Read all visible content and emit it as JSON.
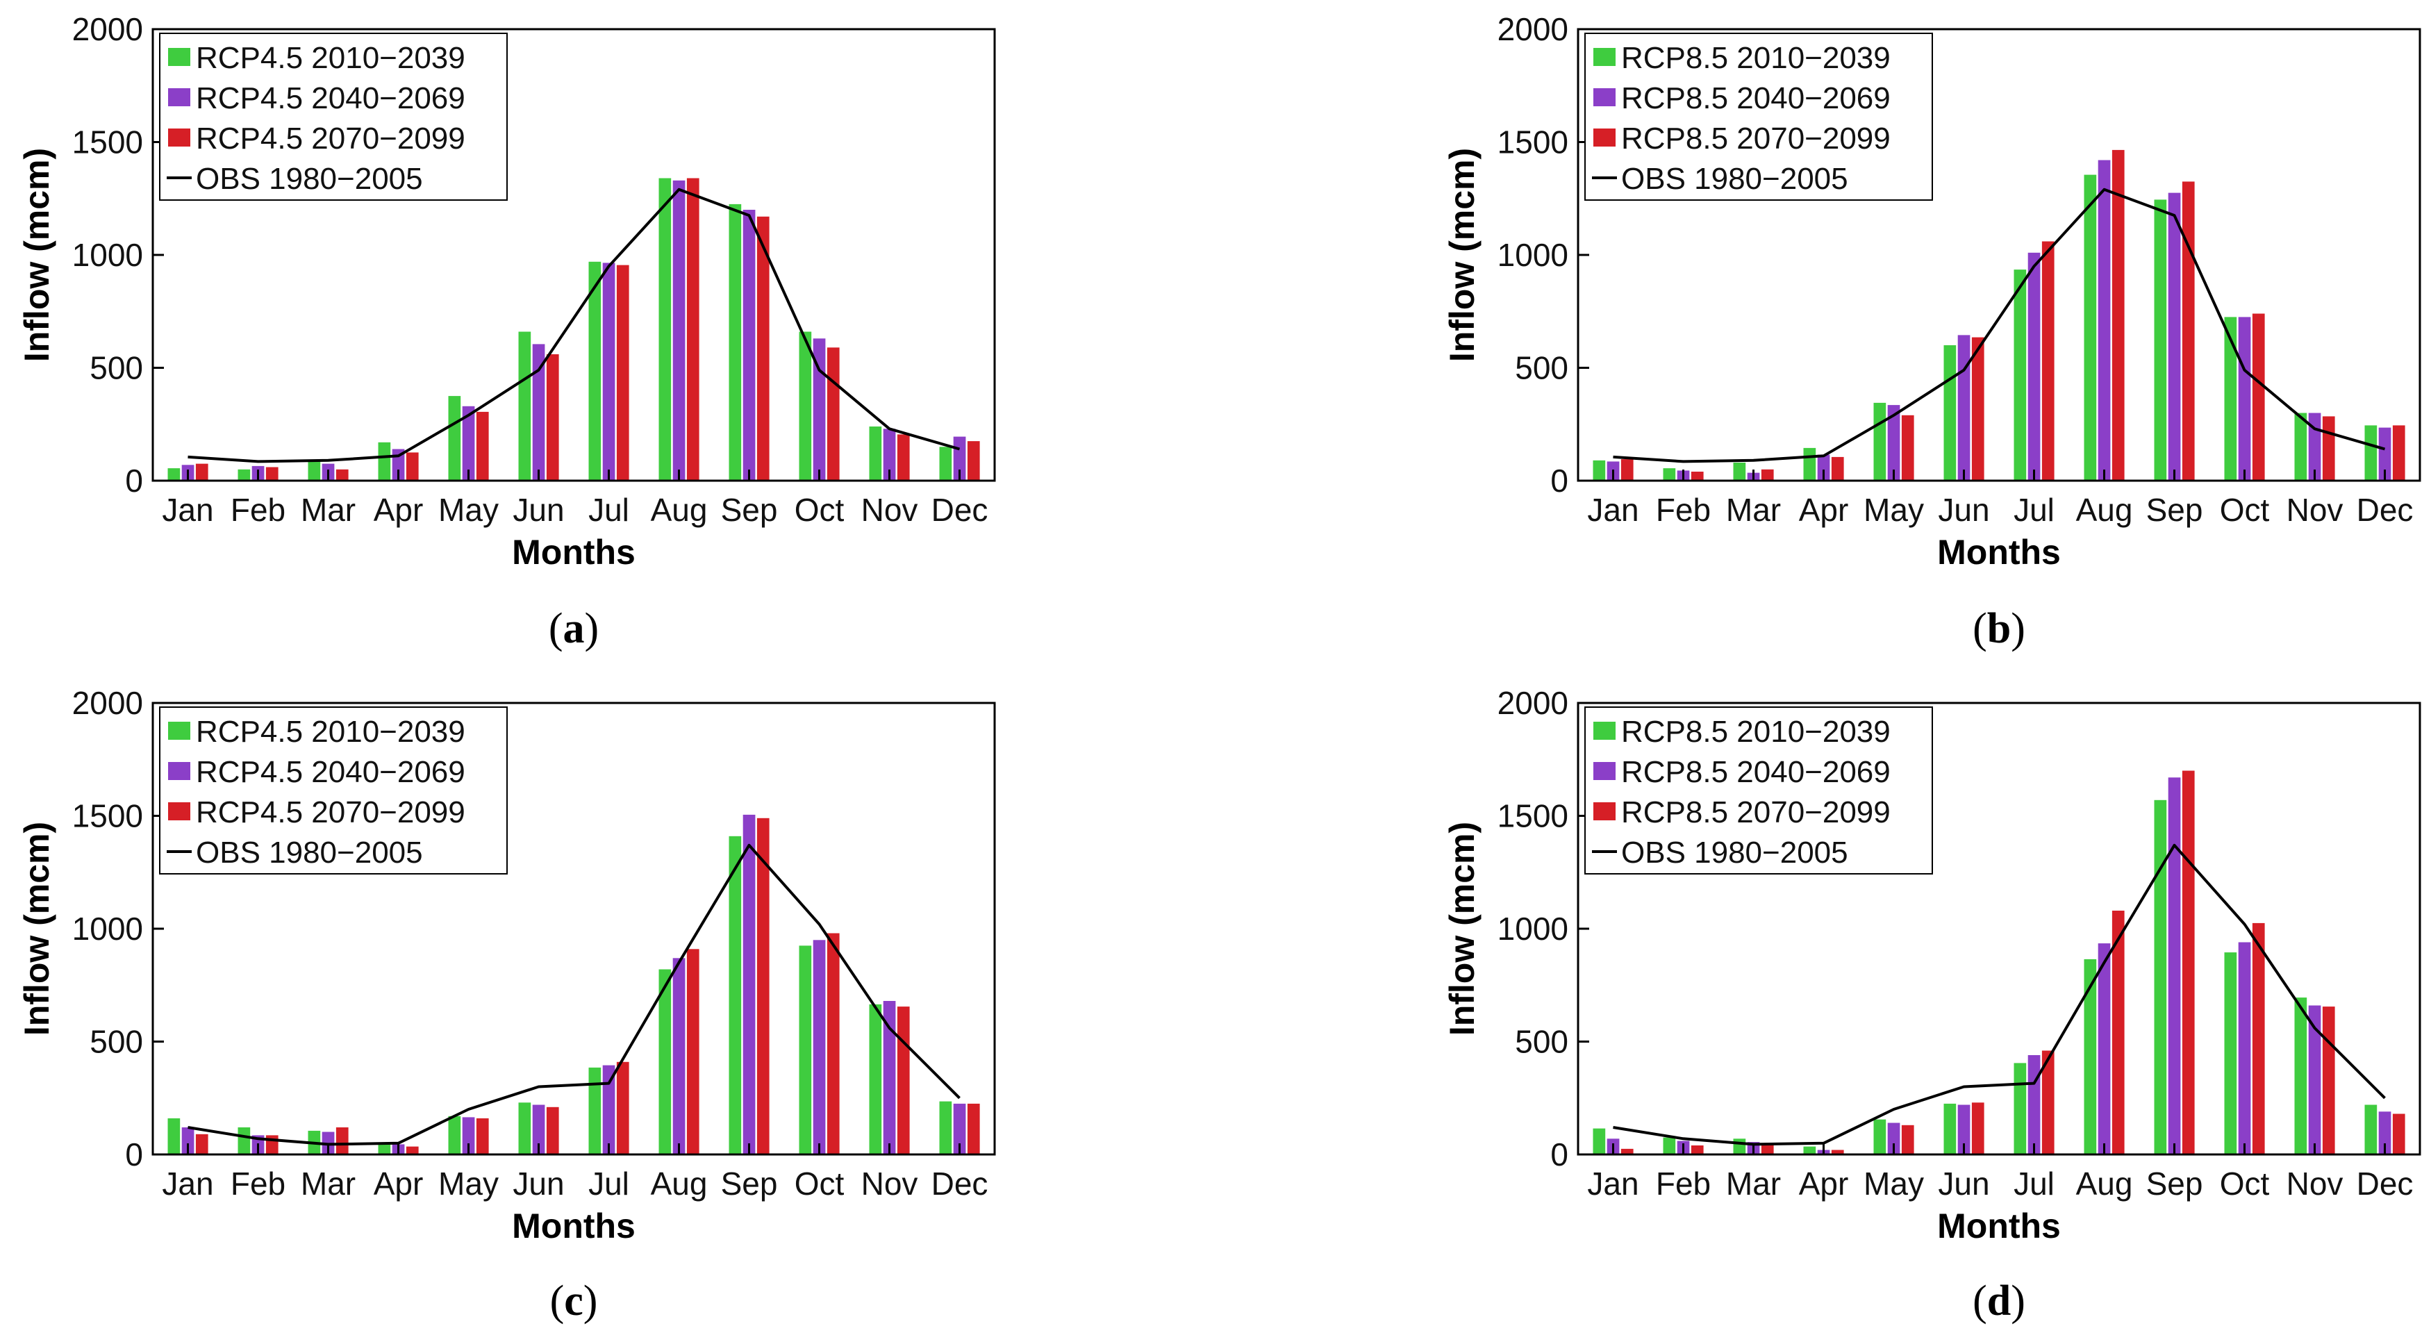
{
  "months": [
    "Jan",
    "Feb",
    "Mar",
    "Apr",
    "May",
    "Jun",
    "Jul",
    "Aug",
    "Sep",
    "Oct",
    "Nov",
    "Dec"
  ],
  "colors": {
    "s1": "#3fcc3f",
    "s2": "#8b3fc8",
    "s3": "#d61f26",
    "obs": "#000000"
  },
  "chart_data": [
    {
      "type": "bar",
      "caption": {
        "open": "(",
        "letter": "a",
        "close": ")"
      },
      "xlabel": "Months",
      "ylabel": "Inflow (mcm)",
      "ylim": [
        0,
        2000
      ],
      "yticks": [
        "0",
        "500",
        "1000",
        "1500",
        "2000"
      ],
      "categories": [
        "Jan",
        "Feb",
        "Mar",
        "Apr",
        "May",
        "Jun",
        "Jul",
        "Aug",
        "Sep",
        "Oct",
        "Nov",
        "Dec"
      ],
      "series": [
        {
          "name": "RCP4.5 2010−2039",
          "values": [
            55,
            50,
            85,
            170,
            375,
            660,
            970,
            1340,
            1225,
            660,
            240,
            150
          ]
        },
        {
          "name": "RCP4.5 2040−2069",
          "values": [
            70,
            65,
            75,
            140,
            330,
            605,
            965,
            1330,
            1200,
            630,
            230,
            195
          ]
        },
        {
          "name": "RCP4.5 2070−2099",
          "values": [
            75,
            60,
            50,
            125,
            305,
            560,
            955,
            1340,
            1170,
            590,
            205,
            175
          ]
        }
      ],
      "line": {
        "name": "OBS 1980−2005",
        "values": [
          105,
          85,
          90,
          110,
          290,
          490,
          950,
          1290,
          1175,
          490,
          230,
          140
        ]
      }
    },
    {
      "type": "bar",
      "caption": {
        "open": "(",
        "letter": "b",
        "close": ")"
      },
      "xlabel": "Months",
      "ylabel": "Inflow (mcm)",
      "ylim": [
        0,
        2000
      ],
      "yticks": [
        "0",
        "500",
        "1000",
        "1500",
        "2000"
      ],
      "categories": [
        "Jan",
        "Feb",
        "Mar",
        "Apr",
        "May",
        "Jun",
        "Jul",
        "Aug",
        "Sep",
        "Oct",
        "Nov",
        "Dec"
      ],
      "series": [
        {
          "name": "RCP8.5 2010−2039",
          "values": [
            90,
            55,
            80,
            145,
            345,
            600,
            935,
            1355,
            1245,
            725,
            300,
            245
          ]
        },
        {
          "name": "RCP8.5 2040−2069",
          "values": [
            85,
            45,
            35,
            115,
            335,
            645,
            1010,
            1420,
            1275,
            725,
            300,
            235
          ]
        },
        {
          "name": "RCP8.5 2070−2099",
          "values": [
            95,
            40,
            50,
            105,
            290,
            635,
            1060,
            1465,
            1325,
            740,
            285,
            245
          ]
        }
      ],
      "line": {
        "name": "OBS 1980−2005",
        "values": [
          105,
          85,
          90,
          110,
          290,
          490,
          950,
          1290,
          1175,
          490,
          230,
          140
        ]
      }
    },
    {
      "type": "bar",
      "caption": {
        "open": "(",
        "letter": "c",
        "close": ")"
      },
      "xlabel": "Months",
      "ylabel": "Inflow (mcm)",
      "ylim": [
        0,
        2000
      ],
      "yticks": [
        "0",
        "500",
        "1000",
        "1500",
        "2000"
      ],
      "categories": [
        "Jan",
        "Feb",
        "Mar",
        "Apr",
        "May",
        "Jun",
        "Jul",
        "Aug",
        "Sep",
        "Oct",
        "Nov",
        "Dec"
      ],
      "series": [
        {
          "name": "RCP4.5 2010−2039",
          "values": [
            160,
            120,
            105,
            45,
            170,
            230,
            385,
            820,
            1410,
            925,
            665,
            235
          ]
        },
        {
          "name": "RCP4.5 2040−2069",
          "values": [
            120,
            85,
            100,
            45,
            165,
            220,
            395,
            870,
            1505,
            950,
            680,
            225
          ]
        },
        {
          "name": "RCP4.5 2070−2099",
          "values": [
            90,
            85,
            120,
            35,
            160,
            210,
            410,
            910,
            1490,
            980,
            655,
            225
          ]
        }
      ],
      "line": {
        "name": "OBS 1980−2005",
        "values": [
          120,
          70,
          45,
          50,
          200,
          300,
          315,
          850,
          1370,
          1020,
          560,
          250
        ]
      }
    },
    {
      "type": "bar",
      "caption": {
        "open": "(",
        "letter": "d",
        "close": ")"
      },
      "xlabel": "Months",
      "ylabel": "Inflow (mcm)",
      "ylim": [
        0,
        2000
      ],
      "yticks": [
        "0",
        "500",
        "1000",
        "1500",
        "2000"
      ],
      "categories": [
        "Jan",
        "Feb",
        "Mar",
        "Apr",
        "May",
        "Jun",
        "Jul",
        "Aug",
        "Sep",
        "Oct",
        "Nov",
        "Dec"
      ],
      "series": [
        {
          "name": "RCP8.5 2010−2039",
          "values": [
            115,
            75,
            70,
            35,
            155,
            225,
            405,
            865,
            1570,
            895,
            695,
            220
          ]
        },
        {
          "name": "RCP8.5 2040−2069",
          "values": [
            70,
            60,
            55,
            20,
            140,
            220,
            440,
            935,
            1670,
            940,
            660,
            190
          ]
        },
        {
          "name": "RCP8.5 2070−2099",
          "values": [
            25,
            40,
            45,
            20,
            130,
            230,
            460,
            1080,
            1700,
            1025,
            655,
            180
          ]
        }
      ],
      "line": {
        "name": "OBS 1980−2005",
        "values": [
          120,
          70,
          45,
          50,
          200,
          300,
          315,
          850,
          1370,
          1020,
          560,
          250
        ]
      }
    }
  ]
}
